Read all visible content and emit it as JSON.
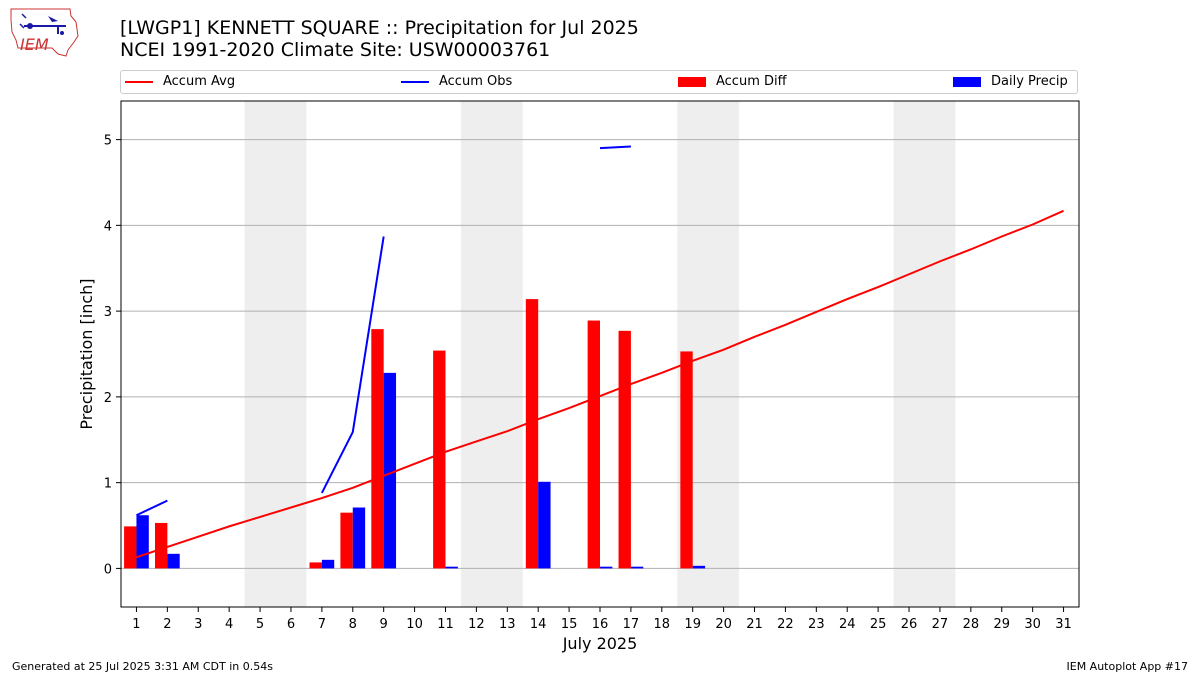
{
  "logo": {
    "text": "IEM"
  },
  "title": {
    "line1": "[LWGP1] KENNETT SQUARE :: Precipitation for Jul 2025",
    "line2": "NCEI 1991-2020 Climate Site: USW00003761"
  },
  "legend": [
    {
      "label": "Accum Avg",
      "kind": "line",
      "color": "#ff0000"
    },
    {
      "label": "Accum Obs",
      "kind": "line",
      "color": "#0000ff"
    },
    {
      "label": "Accum Diff",
      "kind": "box",
      "color": "#ff0000"
    },
    {
      "label": "Daily Precip",
      "kind": "box",
      "color": "#0000ff"
    }
  ],
  "footer": {
    "left": "Generated at 25 Jul 2025 3:31 AM CDT in 0.54s",
    "right": "IEM Autoplot App #17"
  },
  "chart_data": {
    "type": "bar",
    "xlabel": "July 2025",
    "ylabel": "Precipitation [inch]",
    "ylim": [
      -0.45,
      5.45
    ],
    "xlim": [
      0.5,
      31.5
    ],
    "yticks": [
      0,
      1,
      2,
      3,
      4,
      5
    ],
    "grid": "y",
    "legend_position": "top",
    "weekend_shading": [
      [
        4.5,
        6.5
      ],
      [
        11.5,
        13.5
      ],
      [
        18.5,
        20.5
      ],
      [
        25.5,
        27.5
      ]
    ],
    "days": [
      1,
      2,
      3,
      4,
      5,
      6,
      7,
      8,
      9,
      10,
      11,
      12,
      13,
      14,
      15,
      16,
      17,
      18,
      19,
      20,
      21,
      22,
      23,
      24,
      25,
      26,
      27,
      28,
      29,
      30,
      31
    ],
    "accum_avg": [
      0.13,
      0.25,
      0.37,
      0.49,
      0.6,
      0.71,
      0.82,
      0.94,
      1.08,
      1.22,
      1.36,
      1.48,
      1.6,
      1.74,
      1.87,
      2.01,
      2.15,
      2.28,
      2.42,
      2.55,
      2.7,
      2.84,
      2.99,
      3.14,
      3.28,
      3.43,
      3.58,
      3.72,
      3.87,
      4.01,
      4.17
    ],
    "accum_obs_segments": [
      [
        [
          1,
          0.62
        ],
        [
          2,
          0.79
        ]
      ],
      [
        [
          7,
          0.88
        ],
        [
          8,
          1.59
        ],
        [
          9,
          3.87
        ]
      ],
      [
        [
          16,
          4.9
        ],
        [
          17,
          4.92
        ]
      ]
    ],
    "series": [
      {
        "name": "Accum Diff",
        "color": "#ff0000",
        "points": [
          [
            1,
            0.49
          ],
          [
            2,
            0.53
          ],
          [
            7,
            0.07
          ],
          [
            8,
            0.65
          ],
          [
            9,
            2.79
          ],
          [
            11,
            2.54
          ],
          [
            14,
            3.14
          ],
          [
            16,
            2.89
          ],
          [
            17,
            2.77
          ],
          [
            19,
            2.53
          ]
        ]
      },
      {
        "name": "Daily Precip",
        "color": "#0000ff",
        "points": [
          [
            1,
            0.62
          ],
          [
            2,
            0.17
          ],
          [
            7,
            0.1
          ],
          [
            8,
            0.71
          ],
          [
            9,
            2.28
          ],
          [
            11,
            0.02
          ],
          [
            14,
            1.01
          ],
          [
            16,
            0.02
          ],
          [
            17,
            0.02
          ],
          [
            19,
            0.03
          ]
        ]
      }
    ]
  }
}
